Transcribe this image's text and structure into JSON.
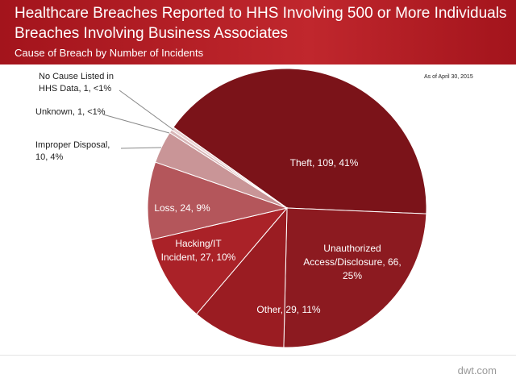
{
  "chart_data": {
    "type": "pie",
    "title": "Healthcare Breaches Reported to HHS Involving 500 or More Individuals",
    "subtitle": "Breaches Involving Business Associates",
    "caption": "Cause of Breach by Number  of Incidents",
    "note": "As of April 30, 2015",
    "footer": "dwt.com",
    "categories": [
      "Theft",
      "Unauthorized Access/Disclosure",
      "Other",
      "Hacking/IT Incident",
      "Loss",
      "Improper Disposal",
      "Unknown",
      "No Cause Listed in HHS Data"
    ],
    "values": [
      109,
      66,
      29,
      27,
      24,
      10,
      1,
      1
    ],
    "value_labels": [
      "Theft, 109, 41%",
      "Unauthorized Access/Disclosure, 66, 25%",
      "Other, 29, 11%",
      "Hacking/IT Incident, 27, 10%",
      "Loss, 24, 9%",
      "Improper Disposal, 10, 4%",
      "Unknown, 1, <1%",
      "No Cause Listed in HHS Data, 1, <1%"
    ],
    "colors": [
      "#7b1319",
      "#8c1a20",
      "#9a1c22",
      "#aa2228",
      "#b4565b",
      "#c99597",
      "#d8b6b7",
      "#ead3d3"
    ]
  }
}
